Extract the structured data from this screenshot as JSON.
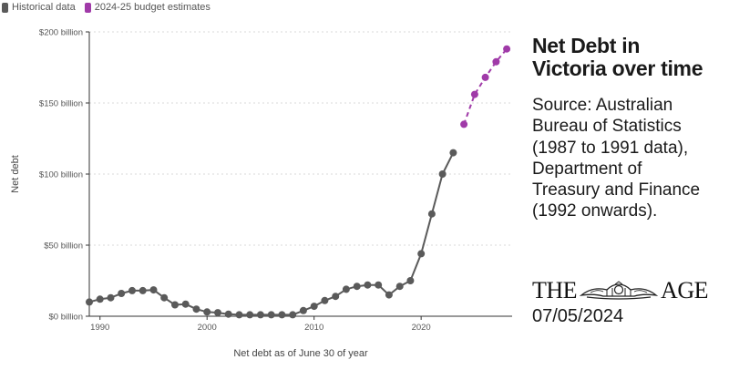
{
  "legend": {
    "historical_label": "Historical data",
    "estimate_label": "2024-25 budget estimates"
  },
  "side": {
    "title_line1": "Net Debt in",
    "title_line2": "Victoria over time",
    "source_lines": [
      "Source: Australian",
      "Bureau of Statistics",
      "(1987 to 1991 data),",
      "Department of",
      "Treasury and Finance",
      "(1992 onwards)."
    ],
    "masthead_left": "THE",
    "masthead_right": "AGE",
    "date": "07/05/2024"
  },
  "colors": {
    "historical": "#5a5a5a",
    "estimate": "#a03aa8",
    "grid": "#d9d9d9",
    "axis": "#333333"
  },
  "chart_data": {
    "type": "line",
    "xlabel": "Net debt as of June 30 of year",
    "ylabel": "Net debt",
    "xlim": [
      1989,
      2028.5
    ],
    "ylim": [
      0,
      200
    ],
    "xticks": [
      1990,
      2000,
      2010,
      2020
    ],
    "yticks": [
      {
        "value": 0,
        "label": "$0 billion"
      },
      {
        "value": 50,
        "label": "$50 billion"
      },
      {
        "value": 100,
        "label": "$100 billion"
      },
      {
        "value": 150,
        "label": "$150 billion"
      },
      {
        "value": 200,
        "label": "$200 billion"
      }
    ],
    "grid": "horizontal",
    "legend_position": "top-left",
    "series": [
      {
        "name": "Historical data",
        "style": "solid",
        "x": [
          1989,
          1990,
          1991,
          1992,
          1993,
          1994,
          1995,
          1996,
          1997,
          1998,
          1999,
          2000,
          2001,
          2002,
          2003,
          2004,
          2005,
          2006,
          2007,
          2008,
          2009,
          2010,
          2011,
          2012,
          2013,
          2014,
          2015,
          2016,
          2017,
          2018,
          2019,
          2020,
          2021,
          2022,
          2023
        ],
        "y": [
          10,
          12,
          13,
          16,
          18,
          18,
          18.5,
          13,
          8,
          8.5,
          5,
          3,
          2.5,
          1.5,
          1,
          1,
          1,
          1,
          1,
          1,
          4,
          7,
          11,
          14,
          19,
          21,
          22,
          22,
          15,
          21,
          25,
          44,
          72,
          100,
          115
        ]
      },
      {
        "name": "2024-25 budget estimates",
        "style": "dashed",
        "x": [
          2024,
          2025,
          2026,
          2027,
          2028
        ],
        "y": [
          135,
          156,
          168,
          179,
          188
        ]
      }
    ]
  }
}
